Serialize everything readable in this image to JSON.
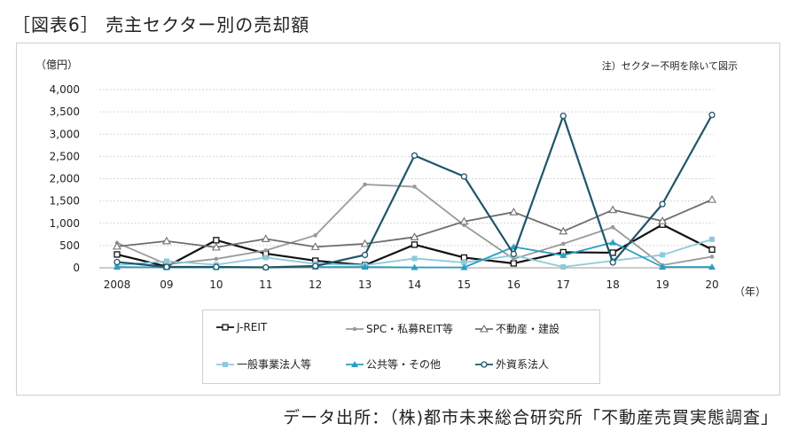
{
  "title": "［図表6］ 売主セクター別の売却額",
  "source": "データ出所：（株)都市未来総合研究所「不動産売買実態調査」",
  "note": "注）セクター不明を除いて図示",
  "chart_data": {
    "type": "line",
    "yunit": "（億円）",
    "xunit": "（年）",
    "categories": [
      "2008",
      "09",
      "10",
      "11",
      "12",
      "13",
      "14",
      "15",
      "16",
      "17",
      "18",
      "19",
      "20"
    ],
    "ylim": [
      0,
      4000
    ],
    "yticks": [
      0,
      500,
      1000,
      1500,
      2000,
      2500,
      3000,
      3500,
      4000
    ],
    "ytick_labels": [
      "0",
      "500",
      "1,000",
      "1,500",
      "2,000",
      "2,500",
      "3,000",
      "3,500",
      "4,000"
    ],
    "grid": true,
    "legend_position": "bottom",
    "series": [
      {
        "name": "J-REIT",
        "color": "#111111",
        "marker": "square-open",
        "values": [
          300,
          30,
          620,
          320,
          160,
          60,
          520,
          230,
          100,
          350,
          340,
          970,
          410
        ]
      },
      {
        "name": "SPC・私募REIT等",
        "color": "#9a9a9a",
        "marker": "circle-small",
        "values": [
          560,
          80,
          200,
          390,
          730,
          1870,
          1820,
          960,
          200,
          540,
          910,
          60,
          250
        ]
      },
      {
        "name": "不動産・建設",
        "color": "#6e6e6e",
        "marker": "triangle-open",
        "values": [
          480,
          600,
          460,
          650,
          470,
          540,
          690,
          1040,
          1250,
          820,
          1300,
          1050,
          1530
        ]
      },
      {
        "name": "一般事業法人等",
        "color": "#8fc9dc",
        "marker": "square-small",
        "values": [
          60,
          150,
          70,
          230,
          90,
          60,
          210,
          120,
          280,
          20,
          160,
          290,
          640
        ]
      },
      {
        "name": "公共等・その他",
        "color": "#2a9fc1",
        "marker": "triangle-filled",
        "values": [
          20,
          10,
          10,
          10,
          20,
          20,
          10,
          10,
          470,
          280,
          570,
          20,
          20
        ]
      },
      {
        "name": "外資系法人",
        "color": "#1f5567",
        "marker": "circle-open",
        "values": [
          130,
          20,
          20,
          10,
          40,
          290,
          2520,
          2050,
          310,
          3410,
          120,
          1430,
          3430
        ]
      }
    ]
  }
}
